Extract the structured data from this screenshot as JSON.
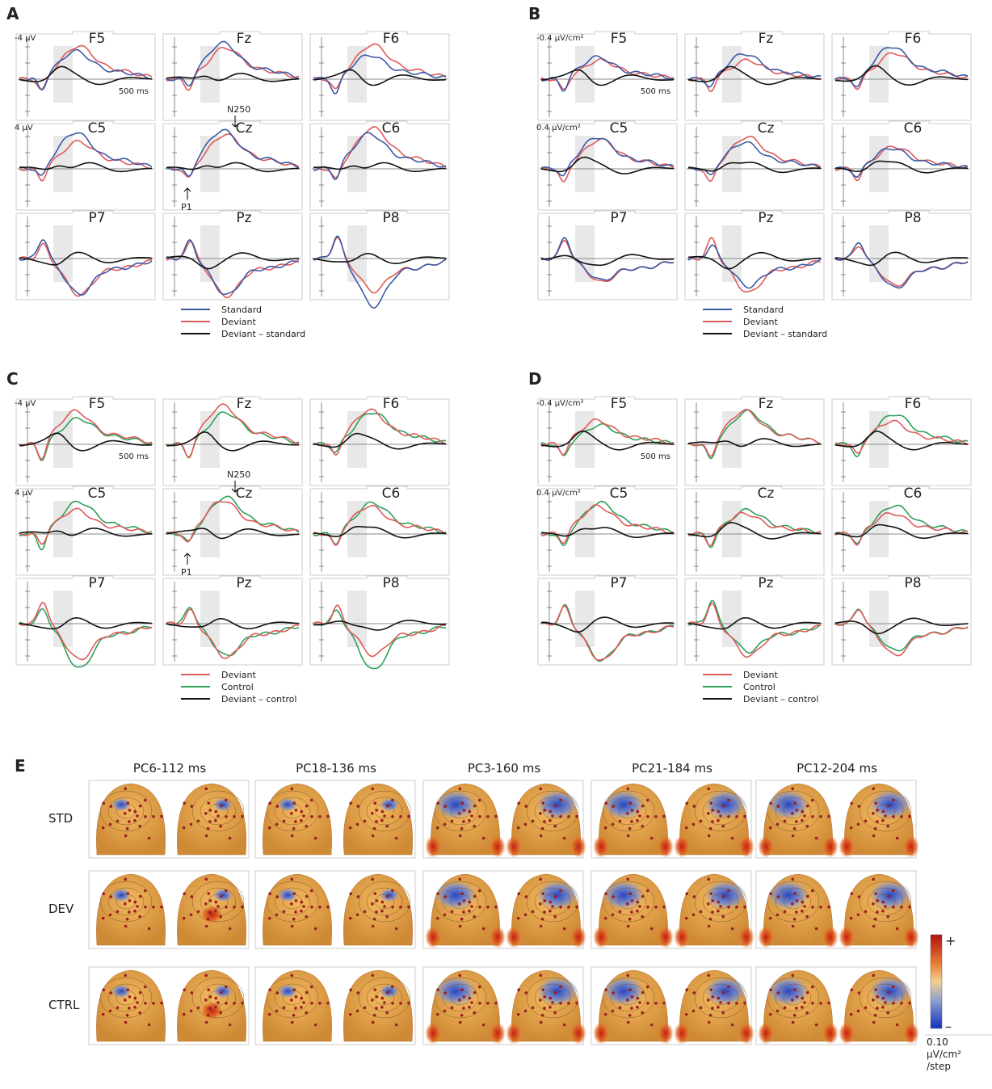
{
  "panels": [
    {
      "label": "A",
      "y_top_label": "-4 µV",
      "y_bottom_label": "4 µV",
      "time_label": "500 ms",
      "electrodes": [
        "F5",
        "Fz",
        "F6",
        "C5",
        "Cz",
        "C6",
        "P7",
        "Pz",
        "P8"
      ],
      "annotations": [
        "N250",
        "P1"
      ],
      "legend": [
        {
          "name": "Standard",
          "color": "#3b5aa6"
        },
        {
          "name": "Deviant",
          "color": "#e05a5a"
        },
        {
          "name": "Deviant – standard",
          "color": "#111111"
        }
      ]
    },
    {
      "label": "B",
      "y_top_label": "-0.4 µV/cm²",
      "y_bottom_label": "0.4 µV/cm²",
      "time_label": "500 ms",
      "electrodes": [
        "F5",
        "Fz",
        "F6",
        "C5",
        "Cz",
        "C6",
        "P7",
        "Pz",
        "P8"
      ],
      "legend": [
        {
          "name": "Standard",
          "color": "#3b5aa6"
        },
        {
          "name": "Deviant",
          "color": "#e05a5a"
        },
        {
          "name": "Deviant – standard",
          "color": "#111111"
        }
      ]
    },
    {
      "label": "C",
      "y_top_label": "-4 µV",
      "y_bottom_label": "4 µV",
      "time_label": "500 ms",
      "electrodes": [
        "F5",
        "Fz",
        "F6",
        "C5",
        "Cz",
        "C6",
        "P7",
        "Pz",
        "P8"
      ],
      "annotations": [
        "N250",
        "P1"
      ],
      "legend": [
        {
          "name": "Deviant",
          "color": "#e05a5a"
        },
        {
          "name": "Control",
          "color": "#2ea05a"
        },
        {
          "name": "Deviant – control",
          "color": "#111111"
        }
      ]
    },
    {
      "label": "D",
      "y_top_label": "-0.4 µV/cm²",
      "y_bottom_label": "0.4 µV/cm²",
      "time_label": "500 ms",
      "electrodes": [
        "F5",
        "Fz",
        "F6",
        "C5",
        "Cz",
        "C6",
        "P7",
        "Pz",
        "P8"
      ],
      "legend": [
        {
          "name": "Deviant",
          "color": "#e05a5a"
        },
        {
          "name": "Control",
          "color": "#2ea05a"
        },
        {
          "name": "Deviant – control",
          "color": "#111111"
        }
      ]
    }
  ],
  "panel_e": {
    "label": "E",
    "columns": [
      "PC6-112 ms",
      "PC18-136 ms",
      "PC3-160 ms",
      "PC21-184 ms",
      "PC12-204 ms"
    ],
    "rows": [
      "STD",
      "DEV",
      "CTRL"
    ],
    "colorbar": {
      "plus": "+",
      "minus": "–",
      "unit": [
        "0.10",
        "µV/cm²",
        "/step"
      ]
    }
  }
}
